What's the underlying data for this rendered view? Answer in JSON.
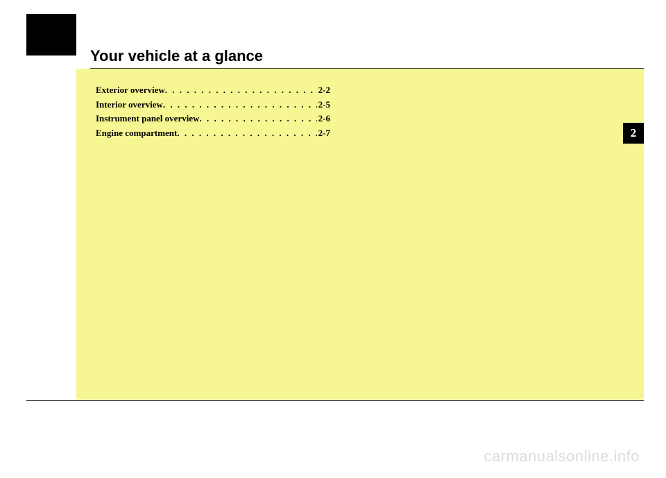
{
  "title": "Your vehicle at a glance",
  "chapter_number": "2",
  "toc": [
    {
      "label": "Exterior overview",
      "page": "2-2"
    },
    {
      "label": "Interior overview",
      "page": "2-5"
    },
    {
      "label": "Instrument panel overview",
      "page": "2-6"
    },
    {
      "label": "Engine compartment",
      "page": "2-7"
    }
  ],
  "watermark": "carmanualsonline.info",
  "colors": {
    "background": "#ffffff",
    "yellow_block": "#f6f692",
    "black": "#000000",
    "watermark": "#dcdcdc",
    "rule": "#333333"
  }
}
